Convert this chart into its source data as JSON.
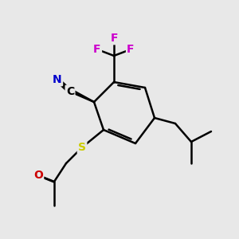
{
  "bg_color": "#e8e8e8",
  "bond_color": "#000000",
  "bond_width": 1.8,
  "atom_colors": {
    "C": "#000000",
    "N": "#0000cc",
    "O": "#cc0000",
    "S": "#cccc00",
    "F": "#cc00cc"
  },
  "font_size": 11,
  "font_size_small": 10
}
